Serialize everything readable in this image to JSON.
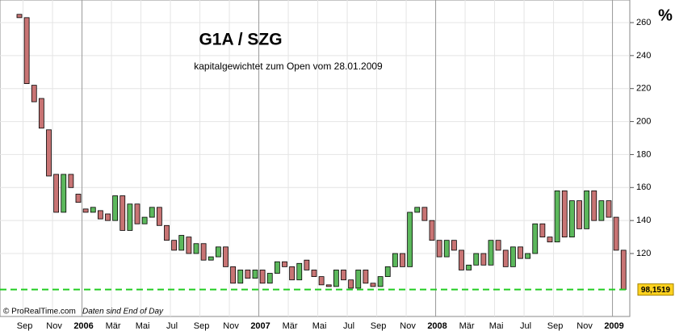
{
  "chart_data": {
    "type": "candlestick",
    "title": "G1A / SZG",
    "subtitle": "kapitalgewichtet zum Open vom 28.01.2009",
    "unit": "%",
    "footer": [
      "© ProRealTime.com",
      "Daten sind End of Day"
    ],
    "categories": [
      null,
      "Sep",
      null,
      null,
      null,
      "Nov",
      null,
      null,
      null,
      "2006",
      null,
      null,
      null,
      "Mär",
      null,
      null,
      null,
      "Mai",
      null,
      null,
      null,
      "Jul",
      null,
      null,
      null,
      "Sep",
      null,
      null,
      null,
      "Nov",
      null,
      null,
      null,
      "2007",
      null,
      null,
      null,
      "Mär",
      null,
      null,
      null,
      "Mai",
      null,
      null,
      null,
      "Jul",
      null,
      null,
      null,
      "Sep",
      null,
      null,
      null,
      "Nov",
      null,
      null,
      null,
      "2008",
      null,
      null,
      null,
      "Mär",
      null,
      null,
      null,
      "Mai",
      null,
      null,
      null,
      "Jul",
      null,
      null,
      null,
      "Sep",
      null,
      null,
      null,
      "Nov",
      null,
      null,
      null,
      "2009",
      null
    ],
    "open": [
      265,
      263,
      222,
      214,
      195,
      168,
      145,
      168,
      156,
      147,
      145,
      146,
      144,
      140,
      155,
      134,
      150,
      138,
      142,
      148,
      137,
      128,
      122,
      130,
      120,
      126,
      116,
      118,
      124,
      112,
      102,
      110,
      105,
      110,
      102,
      108,
      115,
      112,
      104,
      116,
      110,
      106,
      101,
      100,
      110,
      104,
      99,
      110,
      102,
      100,
      106,
      112,
      120,
      112,
      145,
      148,
      140,
      128,
      118,
      128,
      122,
      110,
      113,
      120,
      113,
      128,
      122,
      112,
      124,
      117,
      120,
      138,
      130,
      127,
      158,
      130,
      152,
      135,
      158,
      140,
      152,
      142,
      122
    ],
    "close": [
      263,
      223,
      212,
      196,
      167,
      145,
      168,
      160,
      151,
      145,
      148,
      141,
      140,
      155,
      134,
      150,
      138,
      142,
      148,
      137,
      128,
      122,
      131,
      120,
      126,
      116,
      118,
      124,
      112,
      102,
      110,
      105,
      110,
      102,
      108,
      115,
      112,
      104,
      114,
      110,
      106,
      101,
      100,
      110,
      104,
      99,
      110,
      102,
      100,
      106,
      112,
      120,
      112,
      145,
      148,
      140,
      128,
      118,
      128,
      122,
      110,
      113,
      120,
      113,
      128,
      122,
      112,
      124,
      117,
      120,
      138,
      130,
      127,
      158,
      130,
      152,
      135,
      158,
      140,
      152,
      142,
      122,
      98.1519
    ],
    "up_color": "#5cb85c",
    "down_color": "#c87474",
    "ylim": [
      92.6,
      273.7
    ],
    "yticks": [
      120,
      140,
      160,
      180,
      200,
      220,
      240,
      260
    ],
    "grid": true,
    "price_line": {
      "value": 98.1519,
      "label": "98,1519",
      "color": "#22cc22"
    }
  }
}
